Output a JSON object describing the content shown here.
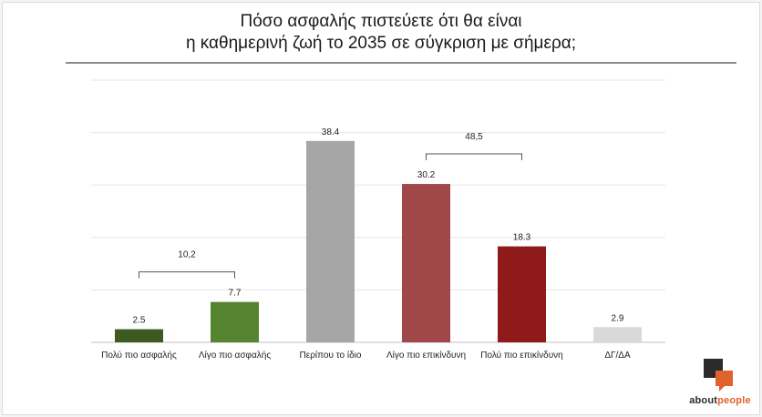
{
  "chart_data": {
    "type": "bar",
    "title_line1": "Πόσο ασφαλής πιστεύετε ότι θα είναι",
    "title_line2": "η καθημερινή ζωή το 2035 σε σύγκριση με σήμερα;",
    "categories": [
      "Πολύ πιο ασφαλής",
      "Λίγο πιο ασφαλής",
      "Περίπου το ίδιο",
      "Λίγο πιο επικίνδυνη",
      "Πολύ πιο επικίνδυνη",
      "ΔΓ/ΔΑ"
    ],
    "values": [
      2.5,
      7.7,
      38.4,
      30.2,
      18.3,
      2.9
    ],
    "value_labels": [
      "2.5",
      "7.7",
      "38.4",
      "30.2",
      "18.3",
      "2.9"
    ],
    "colors": [
      "#3c5a22",
      "#558431",
      "#a6a6a6",
      "#a0474a",
      "#8e1a1a",
      "#d9d9d9"
    ],
    "ylim": [
      0,
      50
    ],
    "grid": true,
    "brackets": [
      {
        "label": "10,2",
        "from": 0,
        "to": 1
      },
      {
        "label": "48,5",
        "from": 3,
        "to": 4
      }
    ]
  },
  "brand": {
    "part1": "about",
    "part2": "people"
  }
}
